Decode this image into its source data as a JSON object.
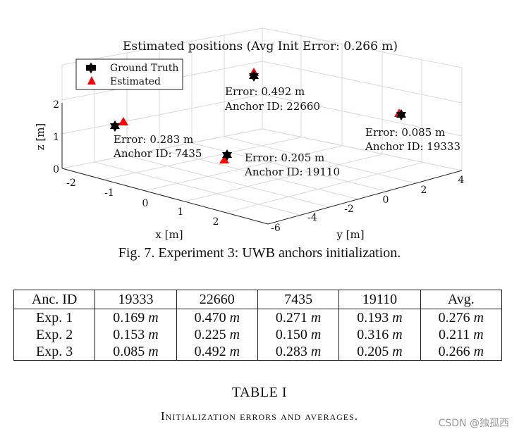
{
  "figure": {
    "plot_title": "Estimated positions (Avg Init Error: 0.266 m)",
    "caption": "Fig. 7.    Experiment 3: UWB anchors initialization.",
    "legend": [
      "Ground Truth",
      "Estimated"
    ],
    "annotations": [
      {
        "error": "Error: 0.492 m",
        "anchor": "Anchor ID: 22660"
      },
      {
        "error": "Error: 0.283 m",
        "anchor": "Anchor ID: 7435"
      },
      {
        "error": "Error: 0.205 m",
        "anchor": "Anchor ID: 19110"
      },
      {
        "error": "Error: 0.085 m",
        "anchor": "Anchor ID: 19333"
      }
    ],
    "colors": {
      "ground_truth": "#000000",
      "estimated": "#ff0000",
      "grid": "#d9d9d9"
    }
  },
  "chart_data": {
    "type": "scatter",
    "title": "Estimated positions (Avg Init Error: 0.266 m)",
    "xlabel": "x [m]",
    "ylabel": "y [m]",
    "zlabel": "z [m]",
    "x_ticks": [
      "-2",
      "-1",
      "0",
      "1",
      "2"
    ],
    "y_ticks": [
      "-6",
      "-4",
      "-2",
      "0",
      "2",
      "4"
    ],
    "z_ticks": [
      "0",
      "1",
      "2"
    ],
    "grid": true,
    "legend_position": "top-left",
    "series": [
      {
        "name": "Ground Truth",
        "marker": "hexagram",
        "color": "#000000"
      },
      {
        "name": "Estimated",
        "marker": "triangle",
        "color": "#ff0000"
      }
    ],
    "anchors": [
      {
        "id": "22660",
        "error_m": 0.492
      },
      {
        "id": "7435",
        "error_m": 0.283
      },
      {
        "id": "19110",
        "error_m": 0.205
      },
      {
        "id": "19333",
        "error_m": 0.085
      }
    ]
  },
  "table": {
    "headers": [
      "Anc. ID",
      "19333",
      "22660",
      "7435",
      "19110",
      "Avg."
    ],
    "rows": [
      {
        "label": "Exp. 1",
        "values": [
          "0.169",
          "0.470",
          "0.271",
          "0.193",
          "0.276"
        ]
      },
      {
        "label": "Exp. 2",
        "values": [
          "0.153",
          "0.225",
          "0.150",
          "0.316",
          "0.211"
        ]
      },
      {
        "label": "Exp. 3",
        "values": [
          "0.085",
          "0.492",
          "0.283",
          "0.205",
          "0.266"
        ]
      }
    ],
    "unit": "m",
    "label": "TABLE I",
    "caption": "Initialization errors and averages."
  },
  "watermark": "CSDN @独孤西"
}
